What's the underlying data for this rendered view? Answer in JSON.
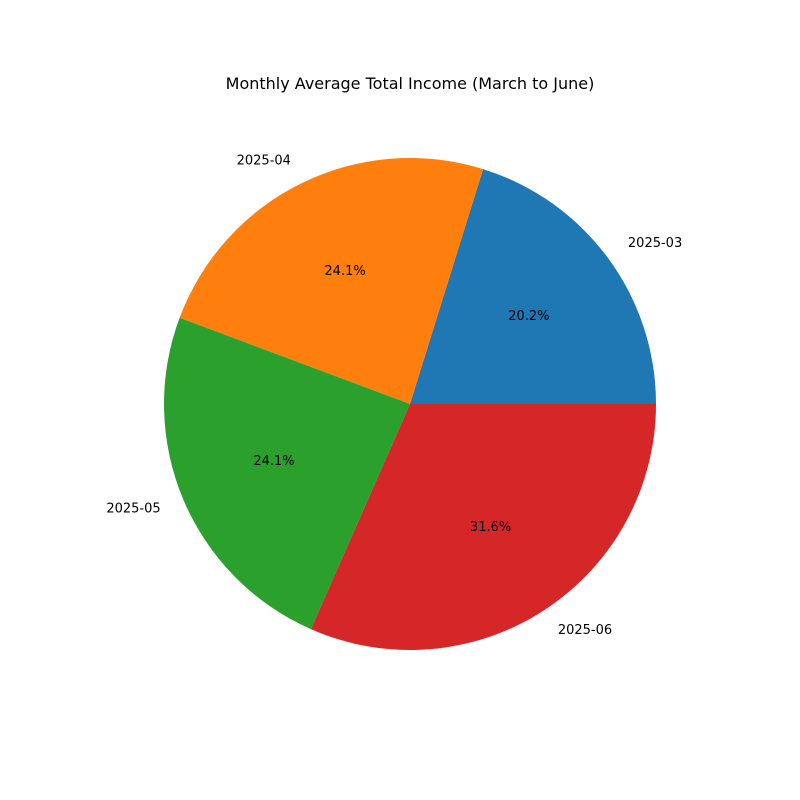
{
  "chart_data": {
    "type": "pie",
    "title": "Monthly Average Total Income (March to June)",
    "categories": [
      "2025-03",
      "2025-04",
      "2025-05",
      "2025-06"
    ],
    "values": [
      20.2,
      24.1,
      24.1,
      31.6
    ],
    "percent_labels": [
      "20.2%",
      "24.1%",
      "24.1%",
      "31.6%"
    ],
    "colors": [
      "#1f77b4",
      "#ff7f0e",
      "#2ca02c",
      "#d62728"
    ],
    "start_angle": "3 o'clock",
    "direction": "counterclockwise",
    "legend": "none"
  }
}
